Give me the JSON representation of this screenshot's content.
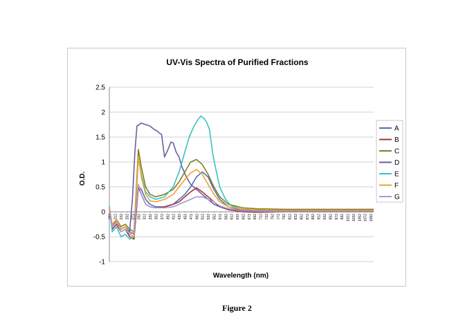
{
  "caption": "Figure 2",
  "chart_data": {
    "type": "line",
    "title": "UV-Vis Spectra of Purified Fractions",
    "xlabel": "Wavelength (nm)",
    "ylabel": "O.D.",
    "ylim": [
      -1,
      2.5
    ],
    "yticks": [
      "-1",
      "-0.5",
      "0",
      "0.5",
      "1",
      "1.5",
      "2",
      "2.5"
    ],
    "grid": "horizontal",
    "legend": "right",
    "xlim": [
      190,
      1100
    ],
    "xtick_values": [
      192,
      212,
      232,
      252,
      272,
      292,
      312,
      332,
      352,
      372,
      392,
      412,
      432,
      452,
      472,
      492,
      512,
      532,
      552,
      572,
      592,
      612,
      632,
      652,
      672,
      692,
      712,
      732,
      752,
      772,
      792,
      812,
      832,
      852,
      872,
      892,
      912,
      932,
      952,
      972,
      992,
      1012,
      1032,
      1052,
      1072,
      1092
    ],
    "series": [
      {
        "name": "A",
        "color": "#4f6fb0",
        "x": [
          190,
          200,
          215,
          230,
          245,
          260,
          275,
          290,
          300,
          315,
          330,
          350,
          380,
          410,
          430,
          450,
          470,
          490,
          510,
          530,
          550,
          570,
          600,
          650,
          700,
          800,
          900,
          1000,
          1100
        ],
        "y": [
          0.08,
          -0.3,
          -0.2,
          -0.35,
          -0.3,
          -0.4,
          -0.45,
          0.5,
          0.45,
          0.25,
          0.15,
          0.1,
          0.1,
          0.15,
          0.25,
          0.35,
          0.5,
          0.7,
          0.8,
          0.7,
          0.45,
          0.25,
          0.1,
          0.03,
          0.02,
          0.02,
          0.02,
          0.02,
          0.02
        ]
      },
      {
        "name": "B",
        "color": "#a4343a",
        "x": [
          190,
          200,
          215,
          230,
          245,
          260,
          275,
          290,
          300,
          315,
          330,
          350,
          380,
          410,
          430,
          450,
          470,
          490,
          510,
          530,
          550,
          570,
          600,
          650,
          700,
          800,
          900,
          1000,
          1100
        ],
        "y": [
          0.05,
          -0.35,
          -0.25,
          -0.4,
          -0.35,
          -0.5,
          -0.55,
          0.5,
          0.35,
          0.15,
          0.1,
          0.08,
          0.1,
          0.15,
          0.2,
          0.3,
          0.4,
          0.48,
          0.4,
          0.3,
          0.2,
          0.1,
          0.04,
          0.0,
          -0.01,
          0.0,
          0.0,
          0.0,
          0.0
        ]
      },
      {
        "name": "C",
        "color": "#7f7f1f",
        "x": [
          190,
          200,
          215,
          230,
          245,
          260,
          275,
          290,
          300,
          315,
          330,
          350,
          380,
          410,
          430,
          450,
          470,
          490,
          510,
          530,
          550,
          570,
          600,
          650,
          700,
          800,
          900,
          1000,
          1100
        ],
        "y": [
          0.1,
          -0.3,
          -0.15,
          -0.3,
          -0.25,
          -0.35,
          -0.4,
          1.25,
          0.9,
          0.5,
          0.35,
          0.3,
          0.35,
          0.45,
          0.6,
          0.8,
          1.0,
          1.05,
          0.95,
          0.75,
          0.5,
          0.3,
          0.15,
          0.08,
          0.06,
          0.05,
          0.05,
          0.05,
          0.05
        ]
      },
      {
        "name": "D",
        "color": "#6a5d9e",
        "x": [
          190,
          200,
          215,
          230,
          245,
          260,
          270,
          278,
          285,
          300,
          315,
          330,
          345,
          355,
          362,
          370,
          380,
          392,
          402,
          410,
          420,
          430,
          440,
          455,
          470,
          490,
          510,
          530,
          550,
          570,
          600,
          650,
          700,
          800,
          900,
          1000,
          1100
        ],
        "y": [
          0.05,
          -0.3,
          -0.2,
          -0.35,
          -0.3,
          -0.4,
          0.3,
          1.2,
          1.72,
          1.78,
          1.75,
          1.72,
          1.65,
          1.62,
          1.58,
          1.55,
          1.1,
          1.25,
          1.4,
          1.38,
          1.2,
          1.1,
          0.9,
          0.7,
          0.55,
          0.45,
          0.35,
          0.25,
          0.15,
          0.1,
          0.06,
          0.03,
          0.02,
          0.02,
          0.02,
          0.02,
          0.02
        ]
      },
      {
        "name": "E",
        "color": "#3cc0c4",
        "x": [
          190,
          200,
          215,
          230,
          245,
          260,
          275,
          290,
          300,
          315,
          330,
          350,
          380,
          410,
          430,
          450,
          465,
          480,
          495,
          505,
          515,
          525,
          535,
          545,
          555,
          570,
          590,
          610,
          640,
          680,
          750,
          850,
          950,
          1050,
          1100
        ],
        "y": [
          0.12,
          -0.4,
          -0.3,
          -0.5,
          -0.45,
          -0.55,
          -0.5,
          1.1,
          0.75,
          0.4,
          0.3,
          0.25,
          0.3,
          0.5,
          0.8,
          1.2,
          1.5,
          1.7,
          1.85,
          1.92,
          1.88,
          1.8,
          1.65,
          1.2,
          0.9,
          0.5,
          0.25,
          0.12,
          0.06,
          0.04,
          0.03,
          0.03,
          0.03,
          0.03,
          0.03
        ]
      },
      {
        "name": "F",
        "color": "#f0a030",
        "x": [
          190,
          200,
          215,
          230,
          245,
          260,
          275,
          290,
          300,
          315,
          330,
          350,
          380,
          410,
          430,
          450,
          470,
          490,
          510,
          530,
          550,
          570,
          600,
          650,
          700,
          800,
          900,
          1000,
          1100
        ],
        "y": [
          0.08,
          -0.25,
          -0.15,
          -0.35,
          -0.3,
          -0.45,
          -0.5,
          1.1,
          0.7,
          0.35,
          0.22,
          0.2,
          0.25,
          0.35,
          0.5,
          0.65,
          0.78,
          0.85,
          0.75,
          0.55,
          0.35,
          0.2,
          0.1,
          0.05,
          0.04,
          0.03,
          0.03,
          0.03,
          0.03
        ]
      },
      {
        "name": "G",
        "color": "#a896d8",
        "x": [
          190,
          200,
          215,
          230,
          245,
          260,
          275,
          290,
          300,
          315,
          330,
          350,
          380,
          410,
          430,
          450,
          470,
          490,
          510,
          530,
          550,
          570,
          600,
          650,
          700,
          800,
          900,
          1000,
          1100
        ],
        "y": [
          0.05,
          -0.3,
          -0.2,
          -0.4,
          -0.35,
          -0.45,
          -0.4,
          0.55,
          0.35,
          0.15,
          0.1,
          0.08,
          0.08,
          0.1,
          0.15,
          0.2,
          0.25,
          0.3,
          0.3,
          0.25,
          0.2,
          0.12,
          0.06,
          0.02,
          0.01,
          0.0,
          0.0,
          0.0,
          0.0
        ]
      }
    ]
  }
}
